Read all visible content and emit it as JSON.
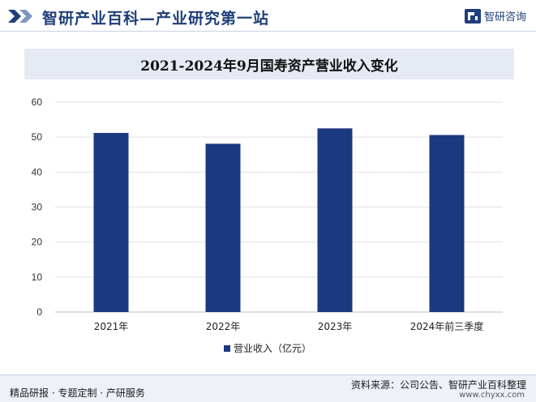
{
  "header": {
    "site_title": "智研产业百科—产业研究第一站",
    "brand_name": "智研咨询"
  },
  "chart_data": {
    "type": "bar",
    "title": "2021-2024年9月国寿资产营业收入变化",
    "categories": [
      "2021年",
      "2022年",
      "2023年",
      "2024年前三季度"
    ],
    "series": [
      {
        "name": "营业收入（亿元）",
        "values": [
          51.2,
          48.1,
          52.5,
          50.6
        ]
      }
    ],
    "ylim": [
      0,
      60
    ],
    "yticks": [
      0,
      10,
      20,
      30,
      40,
      50,
      60
    ],
    "grid": true,
    "legend": "bottom",
    "colors": {
      "bar": "#1c3882",
      "grid": "#e2e2e2",
      "axis": "#bfbfbf"
    }
  },
  "footer": {
    "left_text": "精品研报 · 专题定制 · 产研服务",
    "right_text": "资料来源：公司公告、智研产业百科整理",
    "url": "www.chyxx.com"
  }
}
